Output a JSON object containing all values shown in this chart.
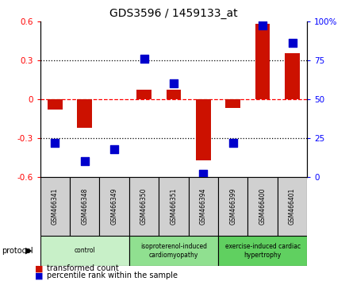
{
  "title": "GDS3596 / 1459133_at",
  "samples": [
    "GSM466341",
    "GSM466348",
    "GSM466349",
    "GSM466350",
    "GSM466351",
    "GSM466394",
    "GSM466399",
    "GSM466400",
    "GSM466401"
  ],
  "transformed_count": [
    -0.08,
    -0.22,
    0.0,
    0.07,
    0.07,
    -0.47,
    -0.07,
    0.58,
    0.35
  ],
  "percentile_rank": [
    22,
    10,
    18,
    76,
    60,
    2,
    22,
    97,
    86
  ],
  "groups": [
    {
      "label": "control",
      "start": 0,
      "end": 3,
      "color": "#c8f0c8"
    },
    {
      "label": "isoproterenol-induced\ncardiomyopathy",
      "start": 3,
      "end": 6,
      "color": "#90e090"
    },
    {
      "label": "exercise-induced cardiac\nhypertrophy",
      "start": 6,
      "end": 9,
      "color": "#60d060"
    }
  ],
  "bar_color": "#cc1100",
  "dot_color": "#0000cc",
  "ylim_left": [
    -0.6,
    0.6
  ],
  "ylim_right": [
    0,
    100
  ],
  "yticks_left": [
    -0.6,
    -0.3,
    0.0,
    0.3,
    0.6
  ],
  "ytick_labels_left": [
    "-0.6",
    "-0.3",
    "0",
    "0.3",
    "0.6"
  ],
  "yticks_right": [
    0,
    25,
    50,
    75,
    100
  ],
  "ytick_labels_right": [
    "0",
    "25",
    "50",
    "75",
    "100%"
  ],
  "hlines_dotted": [
    -0.3,
    0.3
  ],
  "hline_dashed": 0.0,
  "bar_width": 0.5,
  "dot_size": 50,
  "bg_color": "#ffffff"
}
